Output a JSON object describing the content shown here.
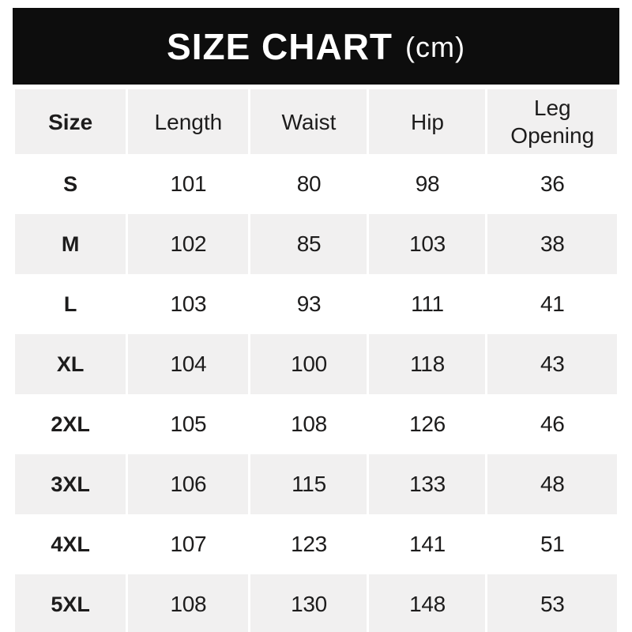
{
  "banner": {
    "title": "SIZE CHART",
    "unit": "(cm)"
  },
  "chart_data": {
    "type": "table",
    "title": "SIZE CHART (cm)",
    "unit": "cm",
    "columns": [
      "Size",
      "Length",
      "Waist",
      "Hip",
      "Leg Opening"
    ],
    "rows": [
      [
        "S",
        101,
        80,
        98,
        36
      ],
      [
        "M",
        102,
        85,
        103,
        38
      ],
      [
        "L",
        103,
        93,
        111,
        41
      ],
      [
        "XL",
        104,
        100,
        118,
        43
      ],
      [
        "2XL",
        105,
        108,
        126,
        46
      ],
      [
        "3XL",
        106,
        115,
        133,
        48
      ],
      [
        "4XL",
        107,
        123,
        141,
        51
      ],
      [
        "5XL",
        108,
        130,
        148,
        53
      ]
    ]
  },
  "colors": {
    "banner_bg": "#0d0d0d",
    "banner_text": "#ffffff",
    "alt_row_bg": "#f1f0f0",
    "text": "#1d1c1c",
    "page_bg": "#ffffff"
  }
}
